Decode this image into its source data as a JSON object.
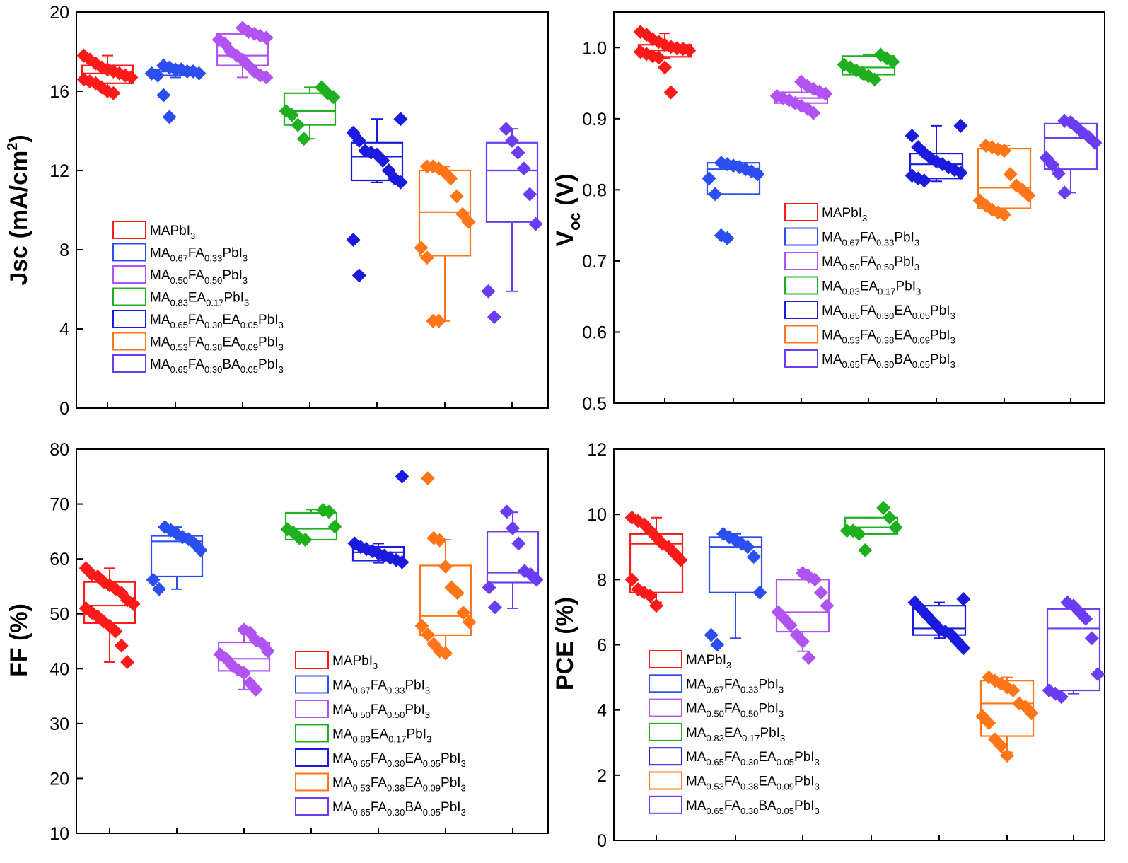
{
  "chart_data": [
    {
      "type": "box",
      "ylabel_main": "Jsc (mA/cm",
      "ylabel_sup": "2",
      "ylabel_close": ")",
      "ylim": [
        0,
        20
      ],
      "yticks": [
        0,
        4,
        8,
        12,
        16,
        20
      ],
      "legend_position": "lower-left",
      "series": [
        {
          "color": "#ff1a1a",
          "box": {
            "q1": 16.4,
            "median": 16.9,
            "q3": 17.3,
            "min": 15.9,
            "max": 17.8
          },
          "points": [
            17.8,
            17.6,
            17.4,
            17.2,
            17.1,
            17.0,
            16.9,
            16.8,
            16.7,
            16.6,
            16.5,
            16.4,
            16.2,
            16.0,
            15.9
          ]
        },
        {
          "color": "#2a4ef0",
          "box": {
            "q1": 16.8,
            "median": 17.0,
            "q3": 17.1,
            "min": 16.7,
            "max": 17.3
          },
          "points": [
            17.3,
            17.2,
            17.1,
            17.1,
            17.0,
            17.0,
            16.9,
            16.9,
            16.8,
            15.8,
            14.7
          ]
        },
        {
          "color": "#b152f2",
          "box": {
            "q1": 17.3,
            "median": 17.8,
            "q3": 18.9,
            "min": 16.7,
            "max": 19.2
          },
          "points": [
            19.2,
            19.0,
            18.9,
            18.8,
            18.7,
            18.6,
            18.4,
            18.0,
            17.8,
            17.6,
            17.3,
            17.0,
            16.8,
            16.7
          ]
        },
        {
          "color": "#1fb01f",
          "box": {
            "q1": 14.3,
            "median": 15.0,
            "q3": 15.9,
            "min": 13.6,
            "max": 16.2
          },
          "points": [
            16.2,
            15.9,
            15.7,
            15.0,
            14.8,
            14.3,
            13.6
          ]
        },
        {
          "color": "#1b1be0",
          "box": {
            "q1": 11.5,
            "median": 12.7,
            "q3": 13.4,
            "min": 11.4,
            "max": 14.6
          },
          "points": [
            14.6,
            13.9,
            13.5,
            13.0,
            12.9,
            12.8,
            12.5,
            12.0,
            11.6,
            11.4,
            8.5,
            6.7
          ]
        },
        {
          "color": "#ff7518",
          "box": {
            "q1": 7.7,
            "median": 9.9,
            "q3": 12.0,
            "min": 4.4,
            "max": 12.2
          },
          "points": [
            12.2,
            12.2,
            12.1,
            11.9,
            11.6,
            10.7,
            9.8,
            9.4,
            8.1,
            7.6,
            4.4,
            4.4
          ]
        },
        {
          "color": "#6a3df2",
          "box": {
            "q1": 9.4,
            "median": 12.0,
            "q3": 13.4,
            "min": 5.9,
            "max": 14.1
          },
          "points": [
            14.1,
            13.5,
            12.9,
            12.1,
            10.8,
            9.3,
            5.9,
            4.6
          ]
        }
      ]
    },
    {
      "type": "box",
      "ylabel_main": "V",
      "ylabel_sub": "oc",
      "ylabel_unit": " (V)",
      "ylim": [
        0.5,
        1.05
      ],
      "yticks": [
        0.5,
        0.6,
        0.7,
        0.8,
        0.9,
        1.0
      ],
      "legend_position": "lower-right",
      "series": [
        {
          "color": "#ff1a1a",
          "box": {
            "q1": 0.987,
            "median": 0.996,
            "q3": 1.004,
            "min": 0.985,
            "max": 1.02
          },
          "points": [
            1.022,
            1.018,
            1.012,
            1.008,
            1.004,
            1.001,
            0.999,
            0.998,
            0.996,
            0.994,
            0.991,
            0.988,
            0.986,
            0.972,
            0.937
          ]
        },
        {
          "color": "#2a4ef0",
          "box": {
            "q1": 0.794,
            "median": 0.829,
            "q3": 0.838,
            "min": 0.794,
            "max": 0.84
          },
          "points": [
            0.838,
            0.836,
            0.834,
            0.832,
            0.829,
            0.826,
            0.822,
            0.816,
            0.794,
            0.736,
            0.732
          ]
        },
        {
          "color": "#b152f2",
          "box": {
            "q1": 0.922,
            "median": 0.929,
            "q3": 0.937,
            "min": 0.916,
            "max": 0.952
          },
          "points": [
            0.952,
            0.946,
            0.942,
            0.938,
            0.935,
            0.932,
            0.929,
            0.926,
            0.922,
            0.918,
            0.914,
            0.908
          ]
        },
        {
          "color": "#1fb01f",
          "box": {
            "q1": 0.962,
            "median": 0.972,
            "q3": 0.988,
            "min": 0.955,
            "max": 0.99
          },
          "points": [
            0.99,
            0.985,
            0.98,
            0.976,
            0.972,
            0.968,
            0.964,
            0.96,
            0.955
          ]
        },
        {
          "color": "#1b1be0",
          "box": {
            "q1": 0.816,
            "median": 0.836,
            "q3": 0.851,
            "min": 0.812,
            "max": 0.89
          },
          "points": [
            0.89,
            0.876,
            0.86,
            0.852,
            0.845,
            0.84,
            0.836,
            0.832,
            0.828,
            0.824,
            0.82,
            0.816,
            0.813
          ]
        },
        {
          "color": "#ff7518",
          "box": {
            "q1": 0.774,
            "median": 0.803,
            "q3": 0.858,
            "min": 0.766,
            "max": 0.862
          },
          "points": [
            0.862,
            0.86,
            0.857,
            0.855,
            0.822,
            0.806,
            0.8,
            0.792,
            0.785,
            0.778,
            0.772,
            0.768,
            0.765
          ]
        },
        {
          "color": "#6a3df2",
          "box": {
            "q1": 0.829,
            "median": 0.873,
            "q3": 0.893,
            "min": 0.796,
            "max": 0.897
          },
          "points": [
            0.897,
            0.895,
            0.888,
            0.88,
            0.874,
            0.866,
            0.845,
            0.835,
            0.823,
            0.796
          ]
        }
      ]
    },
    {
      "type": "box",
      "ylabel_main": "FF (%)",
      "ylim": [
        10,
        80
      ],
      "yticks": [
        10,
        20,
        30,
        40,
        50,
        60,
        70,
        80
      ],
      "legend_position": "lower-right",
      "series": [
        {
          "color": "#ff1a1a",
          "box": {
            "q1": 48.3,
            "median": 51.5,
            "q3": 55.8,
            "min": 41.2,
            "max": 58.3
          },
          "points": [
            58.3,
            57.2,
            56.8,
            55.8,
            55.2,
            54.5,
            53.8,
            52.5,
            51.8,
            51.0,
            50.2,
            49.5,
            48.6,
            47.8,
            46.8,
            44.2,
            41.2
          ]
        },
        {
          "color": "#2a4ef0",
          "box": {
            "q1": 56.8,
            "median": 63.2,
            "q3": 64.2,
            "min": 54.5,
            "max": 65.8
          },
          "points": [
            65.8,
            65.2,
            64.6,
            64.0,
            63.6,
            62.8,
            61.6,
            56.2,
            54.5
          ]
        },
        {
          "color": "#b152f2",
          "box": {
            "q1": 39.6,
            "median": 41.8,
            "q3": 44.8,
            "min": 36.2,
            "max": 47.1
          },
          "points": [
            47.1,
            46.6,
            45.2,
            44.6,
            43.2,
            42.6,
            41.8,
            40.6,
            39.8,
            39.2,
            37.4,
            36.2
          ]
        },
        {
          "color": "#1fb01f",
          "box": {
            "q1": 63.5,
            "median": 65.5,
            "q3": 68.4,
            "min": 63.5,
            "max": 69.0
          },
          "points": [
            68.9,
            68.6,
            65.9,
            65.4,
            64.8,
            63.8,
            63.5
          ]
        },
        {
          "color": "#1b1be0",
          "box": {
            "q1": 59.7,
            "median": 61.2,
            "q3": 62.2,
            "min": 59.3,
            "max": 62.8
          },
          "points": [
            75.0,
            62.8,
            62.2,
            61.8,
            61.4,
            61.0,
            60.6,
            60.2,
            59.8,
            59.4
          ]
        },
        {
          "color": "#ff7518",
          "box": {
            "q1": 46.1,
            "median": 49.6,
            "q3": 58.8,
            "min": 42.5,
            "max": 63.5
          },
          "points": [
            74.7,
            63.8,
            63.4,
            58.6,
            54.8,
            53.8,
            50.2,
            48.5,
            47.8,
            46.2,
            44.5,
            43.2,
            42.8
          ]
        },
        {
          "color": "#6a3df2",
          "box": {
            "q1": 55.7,
            "median": 57.5,
            "q3": 65.0,
            "min": 51.0,
            "max": 68.5
          },
          "points": [
            68.6,
            65.6,
            62.8,
            57.8,
            57.2,
            56.2,
            54.8,
            51.2
          ]
        }
      ]
    },
    {
      "type": "box",
      "ylabel_main": "PCE (%)",
      "ylim": [
        0,
        12
      ],
      "yticks": [
        0,
        2,
        4,
        6,
        8,
        10,
        12
      ],
      "legend_position": "lower-left",
      "series": [
        {
          "color": "#ff1a1a",
          "box": {
            "q1": 7.6,
            "median": 9.1,
            "q3": 9.4,
            "min": 7.3,
            "max": 9.9
          },
          "points": [
            9.9,
            9.8,
            9.7,
            9.5,
            9.3,
            9.1,
            9.0,
            8.8,
            8.6,
            8.0,
            7.7,
            7.6,
            7.5,
            7.2
          ]
        },
        {
          "color": "#2a4ef0",
          "box": {
            "q1": 7.6,
            "median": 9.0,
            "q3": 9.3,
            "min": 6.2,
            "max": 9.4
          },
          "points": [
            9.4,
            9.3,
            9.2,
            9.1,
            9.0,
            8.7,
            7.6,
            6.3,
            6.0
          ]
        },
        {
          "color": "#b152f2",
          "box": {
            "q1": 6.4,
            "median": 7.0,
            "q3": 8.0,
            "min": 5.8,
            "max": 8.3
          },
          "points": [
            8.2,
            8.1,
            8.0,
            7.6,
            7.2,
            7.0,
            6.8,
            6.6,
            6.3,
            6.1,
            5.6
          ]
        },
        {
          "color": "#1fb01f",
          "box": {
            "q1": 9.4,
            "median": 9.6,
            "q3": 9.9,
            "min": 9.4,
            "max": 9.9
          },
          "points": [
            10.2,
            9.9,
            9.6,
            9.5,
            9.5,
            9.4,
            8.9
          ]
        },
        {
          "color": "#1b1be0",
          "box": {
            "q1": 6.3,
            "median": 6.5,
            "q3": 7.2,
            "min": 6.2,
            "max": 7.3
          },
          "points": [
            7.4,
            7.3,
            7.1,
            6.9,
            6.7,
            6.5,
            6.4,
            6.3,
            6.1,
            5.9
          ]
        },
        {
          "color": "#ff7518",
          "box": {
            "q1": 3.2,
            "median": 4.2,
            "q3": 4.9,
            "min": 2.7,
            "max": 5.0
          },
          "points": [
            5.0,
            4.9,
            4.8,
            4.7,
            4.6,
            4.2,
            4.1,
            3.9,
            3.8,
            3.6,
            3.1,
            2.9,
            2.6
          ]
        },
        {
          "color": "#6a3df2",
          "box": {
            "q1": 4.6,
            "median": 6.5,
            "q3": 7.1,
            "min": 4.5,
            "max": 7.2
          },
          "points": [
            7.3,
            7.2,
            7.0,
            6.8,
            6.2,
            5.1,
            4.6,
            4.5,
            4.4
          ]
        }
      ]
    }
  ],
  "legend": [
    {
      "color": "#ff1a1a",
      "parts": [
        [
          "MAPbI",
          ""
        ],
        [
          "3",
          "sub"
        ]
      ]
    },
    {
      "color": "#2a4ef0",
      "parts": [
        [
          "MA",
          ""
        ],
        [
          "0.67",
          "sub"
        ],
        [
          "FA",
          ""
        ],
        [
          "0.33",
          "sub"
        ],
        [
          "PbI",
          ""
        ],
        [
          "3",
          "sub"
        ]
      ]
    },
    {
      "color": "#b152f2",
      "parts": [
        [
          "MA",
          ""
        ],
        [
          "0.50",
          "sub"
        ],
        [
          "FA",
          ""
        ],
        [
          "0.50",
          "sub"
        ],
        [
          "PbI",
          ""
        ],
        [
          "3",
          "sub"
        ]
      ]
    },
    {
      "color": "#1fb01f",
      "parts": [
        [
          "MA",
          ""
        ],
        [
          "0.83",
          "sub"
        ],
        [
          "EA",
          ""
        ],
        [
          "0.17",
          "sub"
        ],
        [
          "PbI",
          ""
        ],
        [
          "3",
          "sub"
        ]
      ]
    },
    {
      "color": "#1b1be0",
      "parts": [
        [
          "MA",
          ""
        ],
        [
          "0.65",
          "sub"
        ],
        [
          "FA",
          ""
        ],
        [
          "0.30",
          "sub"
        ],
        [
          "EA",
          ""
        ],
        [
          "0.05",
          "sub"
        ],
        [
          "PbI",
          ""
        ],
        [
          "3",
          "sub"
        ]
      ]
    },
    {
      "color": "#ff7518",
      "parts": [
        [
          "MA",
          ""
        ],
        [
          "0.53",
          "sub"
        ],
        [
          "FA",
          ""
        ],
        [
          "0.38",
          "sub"
        ],
        [
          "EA",
          ""
        ],
        [
          "0.09",
          "sub"
        ],
        [
          "PbI",
          ""
        ],
        [
          "3",
          "sub"
        ]
      ]
    },
    {
      "color": "#6a3df2",
      "parts": [
        [
          "MA",
          ""
        ],
        [
          "0.65",
          "sub"
        ],
        [
          "FA",
          ""
        ],
        [
          "0.30",
          "sub"
        ],
        [
          "BA",
          ""
        ],
        [
          "0.05",
          "sub"
        ],
        [
          "PbI",
          ""
        ],
        [
          "3",
          "sub"
        ]
      ]
    }
  ]
}
